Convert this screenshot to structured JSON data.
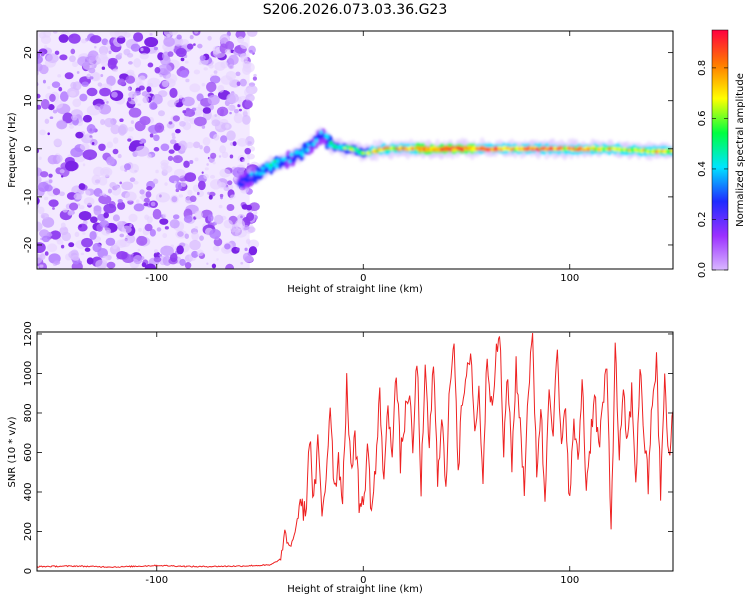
{
  "title": "S206.2026.073.03.36.G23",
  "chart_data": [
    {
      "type": "heatmap",
      "title": "S206.2026.073.03.36.G23",
      "xlabel": "Height of straight line (km)",
      "ylabel": "Frequency (Hz)",
      "xlim": [
        -158,
        150
      ],
      "ylim": [
        -25,
        24.5
      ],
      "xticks": [
        -100,
        0,
        100
      ],
      "yticks": [
        -20,
        -10,
        0,
        10,
        20
      ],
      "colorbar": {
        "label": "Normalized spectral amplitude",
        "range": [
          0,
          0.95
        ],
        "ticks": [
          "0.0",
          "0.2",
          "0.4",
          "0.6",
          "0.8"
        ],
        "colors": [
          "#d9b8ff",
          "#9b30ff",
          "#1e2bff",
          "#00e5ff",
          "#00ff40",
          "#ffff00",
          "#ff7a00",
          "#ff0040"
        ]
      },
      "noise_region_x": [
        -158,
        -55
      ],
      "signal_track": {
        "x": [
          -60,
          -55,
          -50,
          -45,
          -40,
          -35,
          -30,
          -25,
          -20,
          -15,
          -10,
          -5,
          0,
          10,
          20,
          40,
          60,
          80,
          100,
          120,
          140,
          150
        ],
        "freq": [
          -7,
          -6,
          -5,
          -3.5,
          -3,
          -2,
          -1,
          1,
          3,
          0.5,
          0.3,
          0,
          -1,
          0,
          0,
          0,
          0,
          0,
          0,
          0,
          -0.5,
          -0.5
        ],
        "amplitude": [
          0.3,
          0.35,
          0.4,
          0.45,
          0.4,
          0.35,
          0.4,
          0.35,
          0.3,
          0.45,
          0.55,
          0.6,
          0.55,
          0.8,
          0.85,
          0.9,
          0.85,
          0.85,
          0.8,
          0.75,
          0.7,
          0.7
        ]
      }
    },
    {
      "type": "line",
      "xlabel": "Height of straight line (km)",
      "ylabel": "SNR (10 * v/v)",
      "xlim": [
        -158,
        150
      ],
      "ylim": [
        0,
        1210
      ],
      "xticks": [
        -100,
        0,
        100
      ],
      "yticks": [
        0,
        200,
        400,
        600,
        800,
        1000,
        1200
      ],
      "color": "#ee2222",
      "series": [
        {
          "name": "SNR",
          "x": [
            -158,
            -140,
            -120,
            -100,
            -80,
            -60,
            -45,
            -40,
            -38,
            -36,
            -34,
            -32,
            -30,
            -28,
            -26,
            -24,
            -22,
            -20,
            -18,
            -16,
            -14,
            -12,
            -10,
            -8,
            -6,
            -4,
            -2,
            0,
            2,
            4,
            6,
            8,
            10,
            12,
            14,
            16,
            18,
            20,
            22,
            24,
            26,
            28,
            30,
            32,
            34,
            36,
            38,
            40,
            42,
            44,
            46,
            48,
            50,
            52,
            54,
            56,
            58,
            60,
            62,
            64,
            66,
            68,
            70,
            72,
            74,
            76,
            78,
            80,
            82,
            84,
            86,
            88,
            90,
            92,
            94,
            96,
            98,
            100,
            102,
            104,
            106,
            108,
            110,
            112,
            114,
            116,
            118,
            120,
            122,
            124,
            126,
            128,
            130,
            132,
            134,
            136,
            138,
            140,
            142,
            144,
            146,
            148,
            150
          ],
          "y": [
            22,
            25,
            20,
            28,
            22,
            25,
            30,
            60,
            190,
            120,
            160,
            250,
            380,
            260,
            700,
            320,
            640,
            290,
            480,
            860,
            420,
            560,
            380,
            960,
            480,
            720,
            360,
            310,
            640,
            300,
            520,
            880,
            470,
            810,
            640,
            1000,
            560,
            760,
            920,
            610,
            1080,
            440,
            980,
            650,
            1040,
            460,
            820,
            380,
            980,
            1190,
            520,
            860,
            940,
            1150,
            700,
            900,
            480,
            1100,
            860,
            1040,
            1210,
            620,
            980,
            560,
            1020,
            740,
            430,
            950,
            1170,
            520,
            830,
            340,
            980,
            710,
            1110,
            580,
            860,
            330,
            770,
            520,
            980,
            420,
            660,
            920,
            610,
            840,
            1010,
            220,
            1120,
            590,
            870,
            640,
            900,
            460,
            1010,
            700,
            430,
            880,
            1050,
            410,
            960,
            540,
            810
          ]
        }
      ]
    }
  ]
}
